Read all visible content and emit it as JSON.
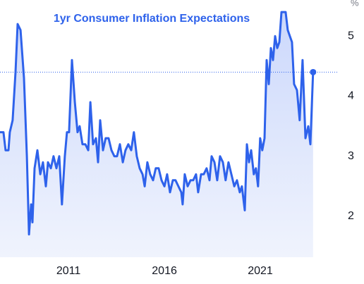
{
  "chart_data": {
    "type": "line",
    "title": "1yr Consumer Inflation Expectations",
    "unit_label": "%",
    "color": "#2e62eb",
    "x": [
      2007.43,
      2007.61,
      2007.72,
      2007.87,
      2007.94,
      2008.09,
      2008.24,
      2008.35,
      2008.5,
      2008.68,
      2008.83,
      2008.94,
      2009.05,
      2009.12,
      2009.23,
      2009.38,
      2009.53,
      2009.67,
      2009.82,
      2009.93,
      2010.08,
      2010.22,
      2010.37,
      2010.52,
      2010.66,
      2010.81,
      2010.92,
      2011.03,
      2011.18,
      2011.33,
      2011.47,
      2011.58,
      2011.73,
      2011.88,
      2012.03,
      2012.14,
      2012.28,
      2012.43,
      2012.54,
      2012.65,
      2012.8,
      2012.94,
      2013.09,
      2013.24,
      2013.39,
      2013.53,
      2013.68,
      2013.83,
      2013.97,
      2014.12,
      2014.27,
      2014.41,
      2014.56,
      2014.71,
      2014.86,
      2014.97,
      2015.11,
      2015.26,
      2015.41,
      2015.55,
      2015.7,
      2015.85,
      2016.0,
      2016.14,
      2016.29,
      2016.44,
      2016.58,
      2016.73,
      2016.88,
      2016.95,
      2017.06,
      2017.21,
      2017.36,
      2017.5,
      2017.65,
      2017.76,
      2017.91,
      2018.05,
      2018.2,
      2018.35,
      2018.46,
      2018.61,
      2018.75,
      2018.9,
      2019.05,
      2019.19,
      2019.34,
      2019.49,
      2019.64,
      2019.78,
      2019.93,
      2020.04,
      2020.19,
      2020.3,
      2020.41,
      2020.52,
      2020.66,
      2020.77,
      2020.88,
      2020.99,
      2021.1,
      2021.22,
      2021.33,
      2021.44,
      2021.55,
      2021.66,
      2021.77,
      2021.88,
      2021.99,
      2022.1,
      2022.21,
      2022.32,
      2022.43,
      2022.54,
      2022.65,
      2022.76,
      2022.91,
      2023.05,
      2023.2,
      2023.35,
      2023.5,
      2023.61,
      2023.75
    ],
    "values": [
      3.4,
      3.4,
      3.1,
      3.1,
      3.4,
      3.6,
      4.4,
      5.2,
      5.1,
      4.3,
      3.0,
      1.7,
      2.2,
      1.9,
      2.8,
      3.1,
      2.7,
      2.9,
      2.5,
      2.9,
      2.8,
      3.0,
      2.8,
      3.0,
      2.2,
      3.0,
      3.4,
      3.4,
      4.6,
      3.9,
      3.4,
      3.5,
      3.2,
      3.2,
      3.1,
      3.9,
      3.2,
      3.3,
      2.9,
      3.6,
      3.1,
      3.3,
      3.3,
      3.1,
      3.0,
      3.0,
      3.2,
      2.9,
      3.1,
      3.2,
      3.1,
      3.4,
      3.0,
      2.8,
      2.7,
      2.5,
      2.9,
      2.7,
      2.6,
      2.8,
      2.8,
      2.6,
      2.5,
      2.7,
      2.4,
      2.6,
      2.6,
      2.5,
      2.4,
      2.2,
      2.7,
      2.5,
      2.6,
      2.6,
      2.7,
      2.4,
      2.7,
      2.7,
      2.8,
      2.6,
      3.0,
      2.9,
      2.6,
      3.0,
      2.9,
      2.6,
      2.9,
      2.7,
      2.5,
      2.6,
      2.4,
      2.5,
      2.1,
      3.2,
      2.9,
      3.1,
      2.7,
      2.8,
      2.5,
      3.3,
      3.1,
      3.3,
      4.6,
      4.2,
      4.8,
      4.6,
      5.0,
      4.8,
      4.9,
      5.4,
      5.4,
      5.4,
      5.1,
      5.0,
      4.9,
      4.2,
      4.1,
      3.6,
      4.6,
      3.3,
      3.5,
      3.2,
      4.4
    ],
    "xlim": [
      2007.43,
      2025.08
    ],
    "xticks": [
      2011,
      2016,
      2021
    ],
    "ylim": [
      1.32,
      5.6
    ],
    "yticks": [
      2,
      3,
      4,
      5
    ]
  }
}
